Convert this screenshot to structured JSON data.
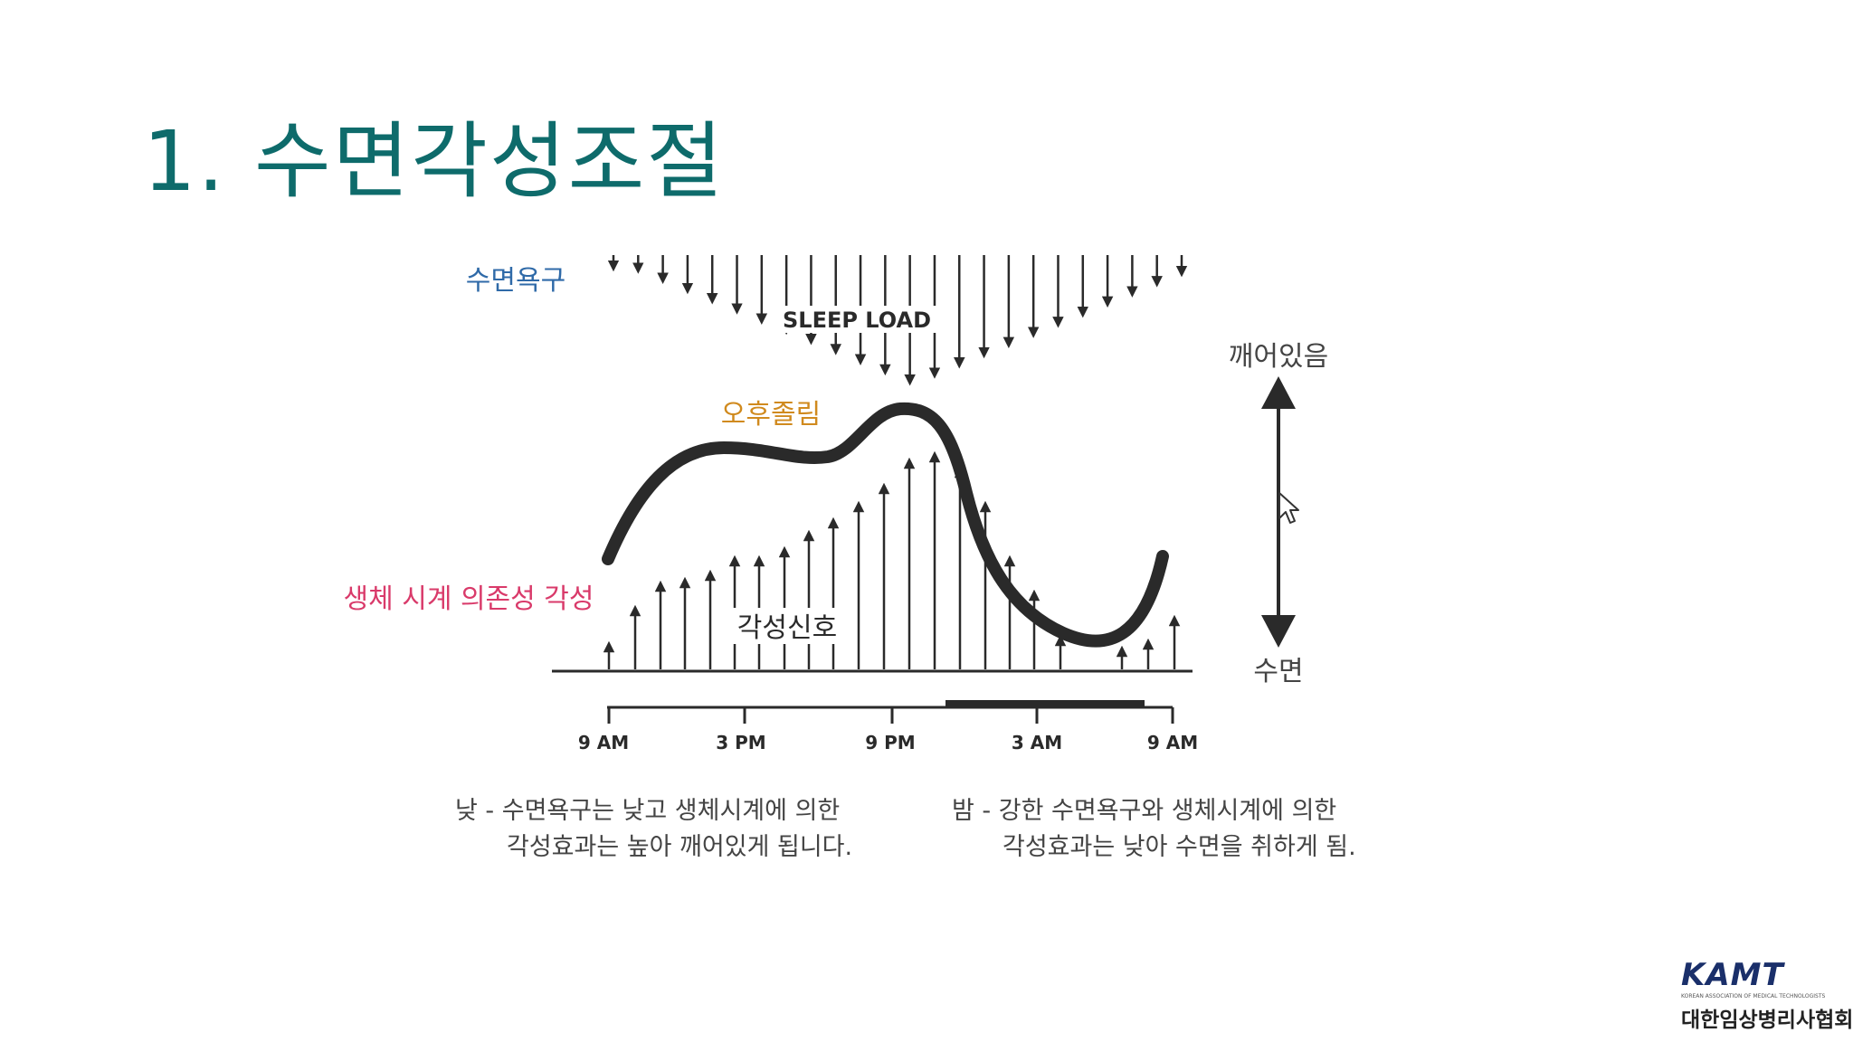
{
  "title": "1.  수면각성조절",
  "diagram": {
    "sleep_drive_label": "수면욕구",
    "sleep_load_label": "SLEEP LOAD",
    "afternoon_dip_label": "오후졸림",
    "circadian_label": "생체 시계 의존성 각성",
    "alerting_signal_label": "각성신호",
    "awake_label": "깨어있음",
    "sleep_label": "수면",
    "time_ticks": [
      "9 AM",
      "3 PM",
      "9 PM",
      "3 AM",
      "9 AM"
    ],
    "caption_day": [
      "낮 - 수면욕구는 낮고 생체시계에 의한",
      "각성효과는 높아 깨어있게 됩니다."
    ],
    "caption_night": [
      "밤 - 강한 수면욕구와 생체시계에 의한",
      "각성효과는 낮아 수면을 취하게 됨."
    ]
  },
  "logo": {
    "mark": "KAMT",
    "subtitle": "KOREAN ASSOCIATION OF MEDICAL TECHNOLOGISTS",
    "name": "대한임상병리사협회"
  },
  "colors": {
    "title": "#0e6b6b",
    "sleep_drive": "#2f6aa8",
    "afternoon_dip": "#d08a1e",
    "circadian": "#d93a6a",
    "ink": "#2a2a2a"
  }
}
